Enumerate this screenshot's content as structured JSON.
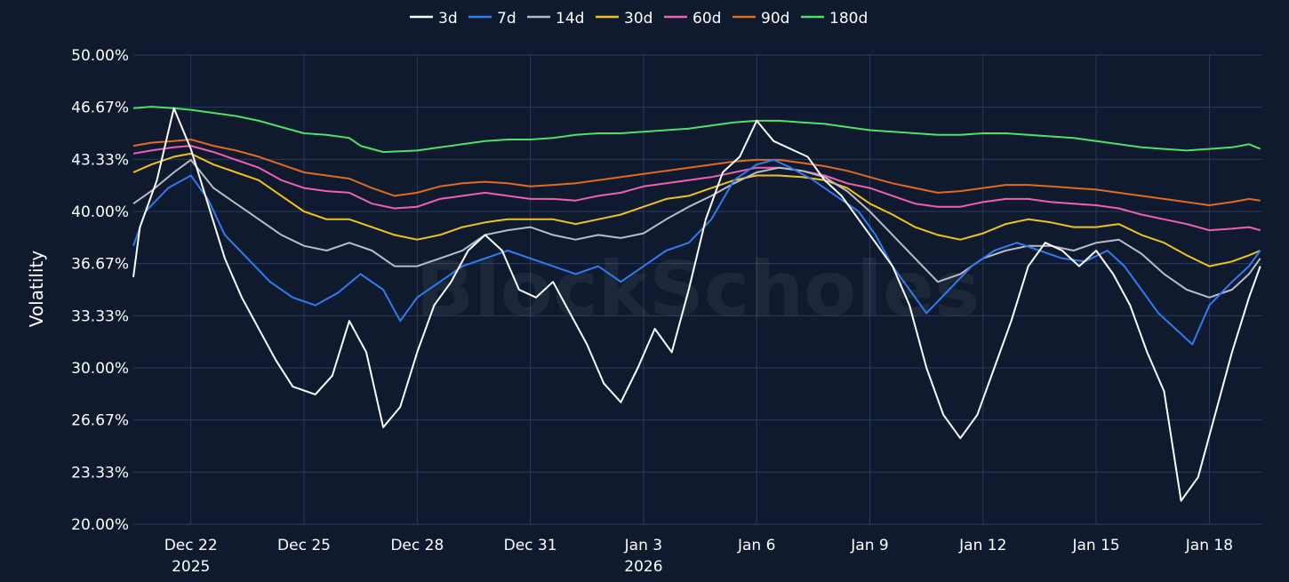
{
  "chart_data": {
    "type": "line",
    "title": "",
    "xlabel": "",
    "ylabel": "Volatility",
    "watermark": "BlockScholes",
    "ylim": [
      20,
      50
    ],
    "xlim": [
      -1.55,
      8.45
    ],
    "y_ticks": [
      "50.00%",
      "46.67%",
      "43.33%",
      "40.00%",
      "36.67%",
      "33.33%",
      "30.00%",
      "26.67%",
      "23.33%",
      "20.00%"
    ],
    "y_tick_values": [
      50,
      46.67,
      43.33,
      40,
      36.67,
      33.33,
      30,
      26.67,
      23.33,
      20
    ],
    "x_ticks": [
      {
        "day": -1,
        "label": "Dec 22",
        "sub": "2025"
      },
      {
        "day": 0,
        "label": "Dec 25",
        "sub": ""
      },
      {
        "day": 1,
        "label": "Dec 28",
        "sub": ""
      },
      {
        "day": 2,
        "label": "Dec 31",
        "sub": ""
      },
      {
        "day": 3,
        "label": "Jan 3",
        "sub": "2026"
      },
      {
        "day": 4,
        "label": "Jan 6",
        "sub": ""
      },
      {
        "day": 5,
        "label": "Jan 9",
        "sub": ""
      },
      {
        "day": 6,
        "label": "Jan 12",
        "sub": ""
      },
      {
        "day": 7,
        "label": "Jan 15",
        "sub": ""
      },
      {
        "day": 8,
        "label": "Jan 18",
        "sub": ""
      }
    ],
    "x_unit_note": "x values are in units of 3-day tick intervals relative to Dec 25",
    "legend": {
      "position": "top-center"
    },
    "series": [
      {
        "name": "3d",
        "color": "#ffffff",
        "x": [
          -1.55,
          -1.45,
          -1.3,
          -1.15,
          -1.0,
          -0.85,
          -0.7,
          -0.55,
          -0.4,
          -0.25,
          -0.1,
          0.1,
          0.25,
          0.4,
          0.55,
          0.7,
          0.85,
          1.0,
          1.15,
          1.3,
          1.45,
          1.6,
          1.75,
          1.9,
          2.05,
          2.2,
          2.35,
          2.5,
          2.65,
          2.8,
          2.95,
          3.1,
          3.25,
          3.4,
          3.55,
          3.7,
          3.85,
          4.0,
          4.15,
          4.3,
          4.45,
          4.6,
          4.75,
          4.9,
          5.05,
          5.2,
          5.35,
          5.5,
          5.65,
          5.8,
          5.95,
          6.1,
          6.25,
          6.4,
          6.55,
          6.7,
          6.85,
          7.0,
          7.15,
          7.3,
          7.45,
          7.6,
          7.75,
          7.9,
          8.05,
          8.2,
          8.35,
          8.45
        ],
        "y": [
          35.8,
          39,
          42,
          46.6,
          44,
          40.5,
          37,
          34.5,
          32.5,
          30.5,
          28.8,
          28.3,
          29.5,
          33,
          31,
          26.2,
          27.5,
          31,
          34,
          35.5,
          37.5,
          38.5,
          37.5,
          35,
          34.5,
          35.5,
          33.5,
          31.5,
          29,
          27.8,
          30,
          32.5,
          31,
          35,
          39.5,
          42.5,
          43.5,
          45.8,
          44.5,
          44,
          43.5,
          42,
          41,
          39.5,
          38,
          36.5,
          34,
          30,
          27,
          25.5,
          27,
          30,
          33,
          36.5,
          38,
          37.5,
          36.5,
          37.5,
          36,
          34,
          31,
          28.5,
          21.5,
          23,
          27,
          31,
          34.5,
          36.5
        ]
      },
      {
        "name": "7d",
        "color": "#2f7bef",
        "x": [
          -1.55,
          -1.4,
          -1.2,
          -1.0,
          -0.85,
          -0.7,
          -0.5,
          -0.3,
          -0.1,
          0.1,
          0.3,
          0.5,
          0.7,
          0.85,
          1.0,
          1.2,
          1.4,
          1.6,
          1.8,
          2.0,
          2.2,
          2.4,
          2.6,
          2.8,
          3.0,
          3.2,
          3.4,
          3.6,
          3.8,
          4.0,
          4.15,
          4.3,
          4.5,
          4.7,
          4.9,
          5.05,
          5.2,
          5.35,
          5.5,
          5.7,
          5.9,
          6.1,
          6.3,
          6.5,
          6.7,
          6.9,
          7.1,
          7.25,
          7.4,
          7.55,
          7.7,
          7.85,
          8.0,
          8.2,
          8.35,
          8.45
        ],
        "y": [
          37.8,
          40,
          41.5,
          42.3,
          40.8,
          38.5,
          37,
          35.5,
          34.5,
          34,
          34.8,
          36,
          35,
          33,
          34.5,
          35.5,
          36.5,
          37,
          37.5,
          37,
          36.5,
          36,
          36.5,
          35.5,
          36.5,
          37.5,
          38,
          39.5,
          42,
          43,
          43.3,
          42.8,
          42,
          41,
          40,
          38.5,
          36.5,
          35,
          33.5,
          35,
          36.5,
          37.5,
          38,
          37.5,
          37,
          36.8,
          37.5,
          36.5,
          35,
          33.5,
          32.5,
          31.5,
          34,
          35.5,
          36.5,
          37.5
        ]
      },
      {
        "name": "14d",
        "color": "#b8bcc6",
        "x": [
          -1.55,
          -1.35,
          -1.15,
          -1.0,
          -0.8,
          -0.6,
          -0.4,
          -0.2,
          0.0,
          0.2,
          0.4,
          0.6,
          0.8,
          1.0,
          1.2,
          1.4,
          1.6,
          1.8,
          2.0,
          2.2,
          2.4,
          2.6,
          2.8,
          3.0,
          3.2,
          3.4,
          3.6,
          3.8,
          4.0,
          4.2,
          4.4,
          4.6,
          4.8,
          5.0,
          5.2,
          5.4,
          5.6,
          5.8,
          6.0,
          6.2,
          6.4,
          6.6,
          6.8,
          7.0,
          7.2,
          7.4,
          7.6,
          7.8,
          8.0,
          8.2,
          8.35,
          8.45
        ],
        "y": [
          40.5,
          41.3,
          42.5,
          43.3,
          41.5,
          40.5,
          39.5,
          38.5,
          37.8,
          37.5,
          38,
          37.5,
          36.5,
          36.5,
          37,
          37.5,
          38.5,
          38.8,
          39,
          38.5,
          38.2,
          38.5,
          38.3,
          38.6,
          39.5,
          40.3,
          41,
          41.8,
          42.5,
          42.8,
          42.6,
          42.2,
          41.3,
          40,
          38.5,
          37,
          35.5,
          36,
          37,
          37.5,
          37.8,
          37.8,
          37.5,
          38,
          38.2,
          37.3,
          36,
          35,
          34.5,
          35,
          36,
          37
        ]
      },
      {
        "name": "30d",
        "color": "#f2c21c",
        "x": [
          -1.55,
          -1.35,
          -1.15,
          -1.0,
          -0.8,
          -0.6,
          -0.4,
          -0.2,
          0.0,
          0.2,
          0.4,
          0.6,
          0.8,
          1.0,
          1.2,
          1.4,
          1.6,
          1.8,
          2.0,
          2.2,
          2.4,
          2.6,
          2.8,
          3.0,
          3.2,
          3.4,
          3.6,
          3.8,
          4.0,
          4.2,
          4.4,
          4.6,
          4.8,
          5.0,
          5.2,
          5.4,
          5.6,
          5.8,
          6.0,
          6.2,
          6.4,
          6.6,
          6.8,
          7.0,
          7.2,
          7.4,
          7.6,
          7.8,
          8.0,
          8.2,
          8.35,
          8.45
        ],
        "y": [
          42.5,
          43,
          43.5,
          43.7,
          43,
          42.5,
          42,
          41,
          40,
          39.5,
          39.5,
          39,
          38.5,
          38.2,
          38.5,
          39,
          39.3,
          39.5,
          39.5,
          39.5,
          39.2,
          39.5,
          39.8,
          40.3,
          40.8,
          41,
          41.5,
          42,
          42.3,
          42.3,
          42.2,
          42,
          41.5,
          40.5,
          39.8,
          39,
          38.5,
          38.2,
          38.6,
          39.2,
          39.5,
          39.3,
          39,
          39,
          39.2,
          38.5,
          38,
          37.2,
          36.5,
          36.8,
          37.2,
          37.5
        ]
      },
      {
        "name": "60d",
        "color": "#ef5fb2",
        "x": [
          -1.55,
          -1.35,
          -1.15,
          -1.0,
          -0.8,
          -0.6,
          -0.4,
          -0.2,
          0.0,
          0.2,
          0.4,
          0.6,
          0.8,
          1.0,
          1.2,
          1.4,
          1.6,
          1.8,
          2.0,
          2.2,
          2.4,
          2.6,
          2.8,
          3.0,
          3.2,
          3.4,
          3.6,
          3.8,
          4.0,
          4.2,
          4.4,
          4.6,
          4.8,
          5.0,
          5.2,
          5.4,
          5.6,
          5.8,
          6.0,
          6.2,
          6.4,
          6.6,
          6.8,
          7.0,
          7.2,
          7.4,
          7.6,
          7.8,
          8.0,
          8.2,
          8.35,
          8.45
        ],
        "y": [
          43.7,
          43.9,
          44.1,
          44.2,
          43.8,
          43.3,
          42.8,
          42,
          41.5,
          41.3,
          41.2,
          40.5,
          40.2,
          40.3,
          40.8,
          41,
          41.2,
          41,
          40.8,
          40.8,
          40.7,
          41,
          41.2,
          41.6,
          41.8,
          42,
          42.2,
          42.5,
          42.8,
          42.8,
          42.6,
          42.3,
          41.8,
          41.5,
          41,
          40.5,
          40.3,
          40.3,
          40.6,
          40.8,
          40.8,
          40.6,
          40.5,
          40.4,
          40.2,
          39.8,
          39.5,
          39.2,
          38.8,
          38.9,
          39,
          38.8
        ]
      },
      {
        "name": "90d",
        "color": "#e06a1e",
        "x": [
          -1.55,
          -1.35,
          -1.15,
          -1.0,
          -0.8,
          -0.6,
          -0.4,
          -0.2,
          0.0,
          0.2,
          0.4,
          0.6,
          0.8,
          1.0,
          1.2,
          1.4,
          1.6,
          1.8,
          2.0,
          2.2,
          2.4,
          2.6,
          2.8,
          3.0,
          3.2,
          3.4,
          3.6,
          3.8,
          4.0,
          4.2,
          4.4,
          4.6,
          4.8,
          5.0,
          5.2,
          5.4,
          5.6,
          5.8,
          6.0,
          6.2,
          6.4,
          6.6,
          6.8,
          7.0,
          7.2,
          7.4,
          7.6,
          7.8,
          8.0,
          8.2,
          8.35,
          8.45
        ],
        "y": [
          44.2,
          44.4,
          44.5,
          44.6,
          44.2,
          43.9,
          43.5,
          43,
          42.5,
          42.3,
          42.1,
          41.5,
          41,
          41.2,
          41.6,
          41.8,
          41.9,
          41.8,
          41.6,
          41.7,
          41.8,
          42,
          42.2,
          42.4,
          42.6,
          42.8,
          43,
          43.2,
          43.3,
          43.3,
          43.1,
          42.9,
          42.6,
          42.2,
          41.8,
          41.5,
          41.2,
          41.3,
          41.5,
          41.7,
          41.7,
          41.6,
          41.5,
          41.4,
          41.2,
          41,
          40.8,
          40.6,
          40.4,
          40.6,
          40.8,
          40.7
        ]
      },
      {
        "name": "180d",
        "color": "#4ee265",
        "x": [
          -1.55,
          -1.35,
          -1.15,
          -1.0,
          -0.8,
          -0.6,
          -0.4,
          -0.2,
          0.0,
          0.2,
          0.4,
          0.5,
          0.7,
          1.0,
          1.2,
          1.4,
          1.6,
          1.8,
          2.0,
          2.2,
          2.4,
          2.6,
          2.8,
          3.0,
          3.2,
          3.4,
          3.6,
          3.8,
          4.0,
          4.2,
          4.4,
          4.6,
          4.8,
          5.0,
          5.2,
          5.4,
          5.6,
          5.8,
          6.0,
          6.2,
          6.4,
          6.6,
          6.8,
          7.0,
          7.2,
          7.4,
          7.6,
          7.8,
          8.0,
          8.2,
          8.35,
          8.45
        ],
        "y": [
          46.6,
          46.7,
          46.6,
          46.5,
          46.3,
          46.1,
          45.8,
          45.4,
          45,
          44.9,
          44.7,
          44.2,
          43.8,
          43.9,
          44.1,
          44.3,
          44.5,
          44.6,
          44.6,
          44.7,
          44.9,
          45,
          45,
          45.1,
          45.2,
          45.3,
          45.5,
          45.7,
          45.8,
          45.8,
          45.7,
          45.6,
          45.4,
          45.2,
          45.1,
          45,
          44.9,
          44.9,
          45,
          45,
          44.9,
          44.8,
          44.7,
          44.5,
          44.3,
          44.1,
          44,
          43.9,
          44,
          44.1,
          44.3,
          44
        ]
      }
    ]
  }
}
